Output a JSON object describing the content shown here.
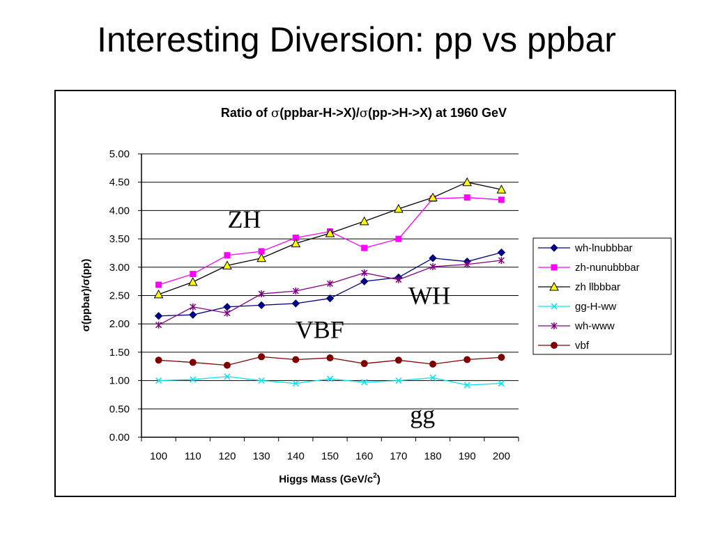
{
  "slide": {
    "title": "Interesting Diversion: pp vs ppbar"
  },
  "colors": {
    "wh_lnubbbar": "#000080",
    "zh_nunubbbar": "#ff00ff",
    "zh_llbbbar": "#000000",
    "gg_h_ww": "#00e5ee",
    "wh_www": "#800080",
    "vbf": "#800000"
  },
  "chart_data": {
    "type": "line",
    "title_parts": [
      "Ratio of ",
      "σ",
      "(ppbar-H->X)/",
      "σ",
      "(pp->H->X) at 1960 GeV"
    ],
    "title": "Ratio of σ(ppbar-H->X)/σ(pp->H->X) at 1960 GeV",
    "xlabel_parts": [
      "Higgs Mass (GeV/c",
      "2",
      ")"
    ],
    "xlabel": "Higgs Mass (GeV/c2)",
    "ylabel": "σ(ppbar)/σ(pp)",
    "categories": [
      "100",
      "110",
      "120",
      "130",
      "140",
      "150",
      "160",
      "170",
      "180",
      "190",
      "200"
    ],
    "ylim": [
      0,
      5
    ],
    "yticks": [
      "0.00",
      "0.50",
      "1.00",
      "1.50",
      "2.00",
      "2.50",
      "3.00",
      "3.50",
      "4.00",
      "4.50",
      "5.00"
    ],
    "grid": true,
    "legend_position": "right",
    "series": [
      {
        "name": "wh-lnubbbar",
        "marker": "diamond",
        "color": "#000080",
        "values": [
          2.14,
          2.16,
          2.3,
          2.33,
          2.36,
          2.45,
          2.75,
          2.82,
          3.16,
          3.1,
          3.26
        ]
      },
      {
        "name": "zh-nunubbbar",
        "marker": "square",
        "color": "#ff00ff",
        "values": [
          2.69,
          2.88,
          3.21,
          3.28,
          3.52,
          3.63,
          3.34,
          3.5,
          4.21,
          4.23,
          4.19
        ]
      },
      {
        "name": "zh llbbbar",
        "marker": "triangle",
        "color": "#000000",
        "values": [
          2.52,
          2.74,
          3.03,
          3.16,
          3.42,
          3.6,
          3.81,
          4.03,
          4.23,
          4.5,
          4.37
        ]
      },
      {
        "name": "gg-H-ww",
        "marker": "x",
        "color": "#00e5ee",
        "values": [
          1.0,
          1.02,
          1.07,
          1.0,
          0.95,
          1.03,
          0.97,
          1.0,
          1.05,
          0.92,
          0.95
        ]
      },
      {
        "name": "wh-www",
        "marker": "star",
        "color": "#800080",
        "values": [
          1.98,
          2.3,
          2.19,
          2.53,
          2.58,
          2.71,
          2.9,
          2.78,
          3.01,
          3.05,
          3.12
        ]
      },
      {
        "name": "vbf",
        "marker": "circle",
        "color": "#800000",
        "values": [
          1.36,
          1.32,
          1.27,
          1.42,
          1.37,
          1.4,
          1.3,
          1.36,
          1.29,
          1.37,
          1.41
        ]
      }
    ],
    "annotations": [
      {
        "text": "ZH",
        "x": "125",
        "y": 3.7
      },
      {
        "text": "WH",
        "x": "179",
        "y": 2.35
      },
      {
        "text": "VBF",
        "x": "147",
        "y": 1.75
      },
      {
        "text": "gg",
        "x": "177",
        "y": 0.25
      }
    ]
  }
}
